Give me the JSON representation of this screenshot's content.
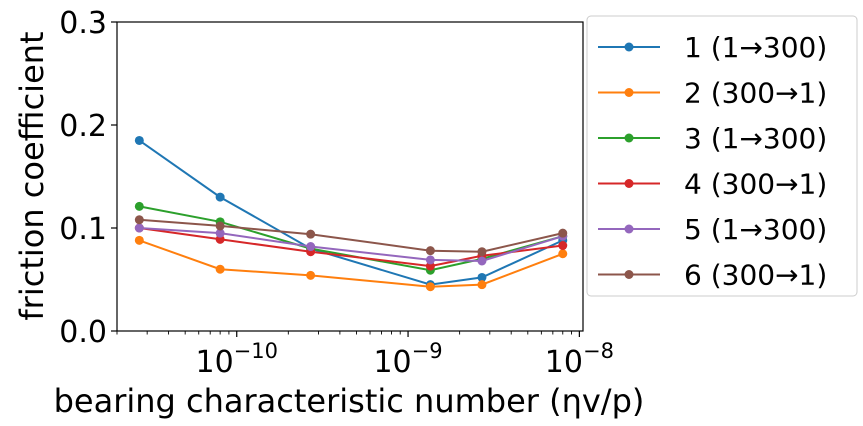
{
  "chart_data": {
    "type": "line",
    "xscale": "log",
    "xlabel": "bearing characteristic number (ηv/p)",
    "ylabel": "friction coefficient",
    "xlim": [
      2e-11,
      1.05e-08
    ],
    "ylim": [
      0.0,
      0.3
    ],
    "yticks": [
      0.0,
      0.1,
      0.2,
      0.3
    ],
    "ytick_labels": [
      "0.0",
      "0.1",
      "0.2",
      "0.3"
    ],
    "xticks": [
      1e-10,
      1e-09,
      1e-08
    ],
    "xtick_bases": [
      "10",
      "10",
      "10"
    ],
    "xtick_exponents": [
      "−10",
      "−9",
      "−8"
    ],
    "x": [
      2.7e-11,
      8e-11,
      2.7e-10,
      1.35e-09,
      2.7e-09,
      8e-09
    ],
    "legend_position": "outside-right",
    "grid": false,
    "series": [
      {
        "name": "1 (1→300)",
        "color": "#1f77b4",
        "values": [
          0.185,
          0.13,
          0.08,
          0.045,
          0.052,
          0.088
        ]
      },
      {
        "name": "2 (300→1)",
        "color": "#ff7f0e",
        "values": [
          0.088,
          0.06,
          0.054,
          0.043,
          0.045,
          0.075
        ]
      },
      {
        "name": "3 (1→300)",
        "color": "#2ca02c",
        "values": [
          0.121,
          0.106,
          0.08,
          0.059,
          0.07,
          0.092
        ]
      },
      {
        "name": "4 (300→1)",
        "color": "#d62728",
        "values": [
          0.1,
          0.089,
          0.077,
          0.063,
          0.073,
          0.083
        ]
      },
      {
        "name": "5 (1→300)",
        "color": "#9467bd",
        "values": [
          0.1,
          0.095,
          0.082,
          0.069,
          0.068,
          0.092
        ]
      },
      {
        "name": "6 (300→1)",
        "color": "#8c564b",
        "values": [
          0.108,
          0.102,
          0.094,
          0.078,
          0.077,
          0.095
        ]
      }
    ]
  }
}
